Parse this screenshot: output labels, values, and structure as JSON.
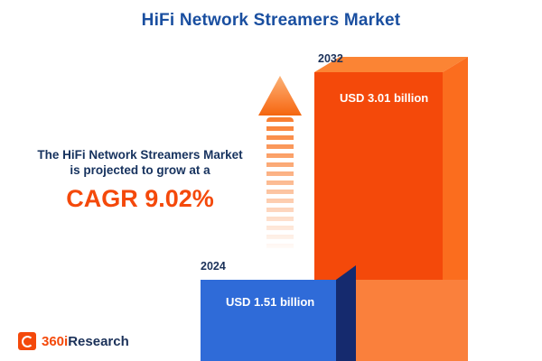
{
  "title": "HiFi Network Streamers Market",
  "description": {
    "line1": "The HiFi Network Streamers Market",
    "line2": "is projected to grow at a",
    "cagr": "CAGR 9.02%"
  },
  "chart_data": {
    "type": "bar",
    "title": "HiFi Network Streamers Market",
    "categories": [
      "2024",
      "2032"
    ],
    "values": [
      1.51,
      3.01
    ],
    "value_unit": "USD billion",
    "value_labels": [
      "USD 1.51 billion",
      "USD 3.01 billion"
    ],
    "cagr_percent": 9.02,
    "orientation": "vertical",
    "legend": "none",
    "bar_colors": [
      "#2f6bd8",
      "#f4490a"
    ],
    "accent_color": "#f4490b",
    "title_color": "#1a4fa0"
  },
  "logo": {
    "accent_text": "360i",
    "main_text": "Research"
  }
}
